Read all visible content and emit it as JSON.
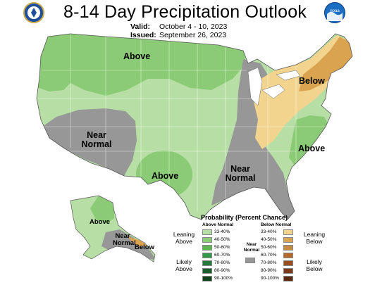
{
  "title": "8-14 Day Precipitation Outlook",
  "valid_label": "Valid:",
  "valid_value": "October 4 - 10, 2023",
  "issued_label": "Issued:",
  "issued_value": "September 26, 2023",
  "left_logo_name": "department-of-commerce-seal",
  "right_logo_name": "noaa-logo",
  "colors": {
    "above_3340": "#b7dfa5",
    "above_4050": "#8bcb76",
    "above_5060": "#5db451",
    "below_3340": "#f2d48e",
    "below_4050": "#d9a350",
    "near_normal": "#979797"
  },
  "map_labels": {
    "north_above": "Above",
    "west_near_line1": "Near",
    "west_near_line2": "Normal",
    "south_above": "Above",
    "southeast_near_line1": "Near",
    "southeast_near_line2": "Normal",
    "northeast_below": "Below",
    "east_above": "Above",
    "alaska_above": "Above",
    "alaska_near_line1": "Near",
    "alaska_near_line2": "Normal",
    "alaska_below": "Below"
  },
  "legend": {
    "title": "Probability (Percent Chance)",
    "above_header": "Above Normal",
    "below_header": "Below Normal",
    "near_header_line1": "Near",
    "near_header_line2": "Normal",
    "leaning_above_1": "Leaning",
    "leaning_above_2": "Above",
    "likely_above_1": "Likely",
    "likely_above_2": "Above",
    "leaning_below_1": "Leaning",
    "leaning_below_2": "Below",
    "likely_below_1": "Likely",
    "likely_below_2": "Below",
    "above_bins": [
      {
        "label": "33-40%",
        "color": "#b7dfa5"
      },
      {
        "label": "40-50%",
        "color": "#8bcb76"
      },
      {
        "label": "50-60%",
        "color": "#5db451"
      },
      {
        "label": "60-70%",
        "color": "#34984a"
      },
      {
        "label": "70-80%",
        "color": "#267a3a"
      },
      {
        "label": "80-90%",
        "color": "#1b5e2c"
      },
      {
        "label": "90-100%",
        "color": "#11411c"
      }
    ],
    "below_bins": [
      {
        "label": "33-40%",
        "color": "#f2d48e"
      },
      {
        "label": "40-50%",
        "color": "#d9a350"
      },
      {
        "label": "50-60%",
        "color": "#c88a40"
      },
      {
        "label": "60-70%",
        "color": "#b56a2c"
      },
      {
        "label": "70-80%",
        "color": "#9a4e1f"
      },
      {
        "label": "80-90%",
        "color": "#7b3a18"
      },
      {
        "label": "90-100%",
        "color": "#5a2a12"
      }
    ],
    "near_color": "#979797"
  }
}
